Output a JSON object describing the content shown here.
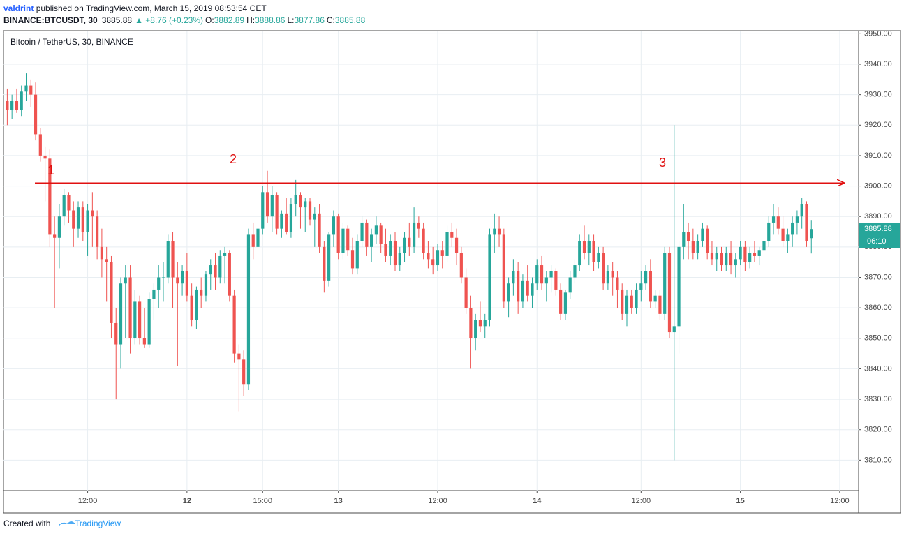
{
  "header": {
    "author": "valdrint",
    "published": "published on TradingView.com, March 15, 2019 08:53:54 CET"
  },
  "chart_data": {
    "type": "candlestick",
    "symbol": "BINANCE:BTCUSDT, 30",
    "change": "▲ +8.76 (+0.23%)",
    "ohlc_labels": [
      "O:",
      "H:",
      "L:",
      "C:"
    ],
    "legend": "Bitcoin / TetherUS, 30, BINANCE",
    "countdown": "06:10",
    "up_color": "#26a69a",
    "down_color": "#ef5350",
    "grid": true,
    "annotation": {
      "level": 3901,
      "color": "#e01010",
      "labels": [
        "1",
        "2",
        "3"
      ]
    },
    "xlim": [
      -0.5,
      180
    ],
    "xticks": [
      {
        "value": 17,
        "label": "12:00"
      },
      {
        "value": 38,
        "label": "12"
      },
      {
        "value": 54,
        "label": "15:00"
      },
      {
        "value": 70,
        "label": "13"
      },
      {
        "value": 91,
        "label": "12:00"
      },
      {
        "value": 112,
        "label": "14"
      },
      {
        "value": 134,
        "label": "12:00"
      },
      {
        "value": 155,
        "label": "15"
      },
      {
        "value": 176,
        "label": "12:00"
      }
    ],
    "ylim": [
      3800,
      3951
    ],
    "yticks": [
      {
        "value": 3810,
        "label": "3810.00"
      },
      {
        "value": 3820,
        "label": "3820.00"
      },
      {
        "value": 3830,
        "label": "3830.00"
      },
      {
        "value": 3840,
        "label": "3840.00"
      },
      {
        "value": 3850,
        "label": "3850.00"
      },
      {
        "value": 3860,
        "label": "3860.00"
      },
      {
        "value": 3870,
        "label": "3870.00"
      },
      {
        "value": 3880,
        "label": "3880.00"
      },
      {
        "value": 3890,
        "label": "3890.00"
      },
      {
        "value": 3900,
        "label": "3900.00"
      },
      {
        "value": 3910,
        "label": "3910.00"
      },
      {
        "value": 3920,
        "label": "3920.00"
      },
      {
        "value": 3930,
        "label": "3930.00"
      },
      {
        "value": 3940,
        "label": "3940.00"
      },
      {
        "value": 3950,
        "label": "3950.00"
      }
    ],
    "ohlc": [
      [
        3928,
        3932,
        3920,
        3925
      ],
      [
        3925,
        3930,
        3922,
        3928
      ],
      [
        3928,
        3932,
        3924,
        3925
      ],
      [
        3925,
        3933,
        3923,
        3931
      ],
      [
        3931,
        3937,
        3928,
        3933
      ],
      [
        3933,
        3935,
        3926,
        3930
      ],
      [
        3930,
        3934,
        3915,
        3917
      ],
      [
        3917,
        3919,
        3908,
        3910
      ],
      [
        3910,
        3913,
        3895,
        3909
      ],
      [
        3909,
        3912,
        3880,
        3884
      ],
      [
        3884,
        3890,
        3860,
        3883
      ],
      [
        3883,
        3894,
        3873,
        3890
      ],
      [
        3890,
        3899,
        3887,
        3897
      ],
      [
        3897,
        3898,
        3888,
        3892
      ],
      [
        3892,
        3895,
        3880,
        3886
      ],
      [
        3886,
        3895,
        3883,
        3893
      ],
      [
        3893,
        3895,
        3882,
        3885
      ],
      [
        3885,
        3894,
        3877,
        3892
      ],
      [
        3892,
        3898,
        3880,
        3890
      ],
      [
        3890,
        3892,
        3876,
        3880
      ],
      [
        3880,
        3886,
        3870,
        3876
      ],
      [
        3876,
        3880,
        3862,
        3875
      ],
      [
        3875,
        3877,
        3850,
        3855
      ],
      [
        3855,
        3860,
        3830,
        3848
      ],
      [
        3848,
        3870,
        3840,
        3868
      ],
      [
        3868,
        3874,
        3850,
        3870
      ],
      [
        3870,
        3874,
        3845,
        3850
      ],
      [
        3850,
        3866,
        3848,
        3862
      ],
      [
        3862,
        3864,
        3848,
        3850
      ],
      [
        3850,
        3860,
        3847,
        3848
      ],
      [
        3848,
        3865,
        3847,
        3863
      ],
      [
        3863,
        3868,
        3856,
        3866
      ],
      [
        3866,
        3874,
        3860,
        3870
      ],
      [
        3870,
        3875,
        3862,
        3870
      ],
      [
        3870,
        3884,
        3868,
        3882
      ],
      [
        3882,
        3885,
        3860,
        3870
      ],
      [
        3870,
        3875,
        3841,
        3868
      ],
      [
        3868,
        3874,
        3864,
        3872
      ],
      [
        3872,
        3878,
        3862,
        3864
      ],
      [
        3864,
        3868,
        3854,
        3856
      ],
      [
        3856,
        3867,
        3853,
        3866
      ],
      [
        3866,
        3870,
        3860,
        3864
      ],
      [
        3864,
        3872,
        3862,
        3871
      ],
      [
        3871,
        3876,
        3866,
        3874
      ],
      [
        3874,
        3878,
        3866,
        3870
      ],
      [
        3870,
        3879,
        3868,
        3877
      ],
      [
        3877,
        3880,
        3868,
        3878
      ],
      [
        3878,
        3879,
        3862,
        3864
      ],
      [
        3864,
        3866,
        3842,
        3845
      ],
      [
        3845,
        3848,
        3826,
        3843
      ],
      [
        3843,
        3846,
        3831,
        3835
      ],
      [
        3835,
        3886,
        3833,
        3884
      ],
      [
        3884,
        3888,
        3876,
        3880
      ],
      [
        3880,
        3890,
        3878,
        3886
      ],
      [
        3886,
        3900,
        3884,
        3898
      ],
      [
        3898,
        3905,
        3888,
        3890
      ],
      [
        3890,
        3900,
        3885,
        3897
      ],
      [
        3897,
        3898,
        3884,
        3886
      ],
      [
        3886,
        3892,
        3883,
        3891
      ],
      [
        3891,
        3896,
        3884,
        3885
      ],
      [
        3885,
        3896,
        3883,
        3894
      ],
      [
        3894,
        3902,
        3890,
        3897
      ],
      [
        3897,
        3898,
        3886,
        3893
      ],
      [
        3893,
        3896,
        3885,
        3895
      ],
      [
        3895,
        3896,
        3887,
        3889
      ],
      [
        3889,
        3893,
        3880,
        3891
      ],
      [
        3891,
        3894,
        3878,
        3880
      ],
      [
        3880,
        3882,
        3865,
        3869
      ],
      [
        3869,
        3885,
        3867,
        3884
      ],
      [
        3884,
        3892,
        3880,
        3890
      ],
      [
        3890,
        3891,
        3876,
        3878
      ],
      [
        3878,
        3888,
        3876,
        3886
      ],
      [
        3886,
        3887,
        3877,
        3879
      ],
      [
        3879,
        3883,
        3871,
        3873
      ],
      [
        3873,
        3884,
        3871,
        3882
      ],
      [
        3882,
        3890,
        3880,
        3888
      ],
      [
        3888,
        3889,
        3877,
        3880
      ],
      [
        3880,
        3886,
        3875,
        3884
      ],
      [
        3884,
        3890,
        3881,
        3887
      ],
      [
        3887,
        3888,
        3878,
        3881
      ],
      [
        3881,
        3886,
        3875,
        3877
      ],
      [
        3877,
        3884,
        3874,
        3882
      ],
      [
        3882,
        3885,
        3872,
        3874
      ],
      [
        3874,
        3880,
        3872,
        3878
      ],
      [
        3878,
        3885,
        3875,
        3883
      ],
      [
        3883,
        3888,
        3877,
        3880
      ],
      [
        3880,
        3893,
        3878,
        3888
      ],
      [
        3888,
        3890,
        3883,
        3886
      ],
      [
        3886,
        3888,
        3876,
        3878
      ],
      [
        3878,
        3882,
        3873,
        3876
      ],
      [
        3876,
        3880,
        3871,
        3874
      ],
      [
        3874,
        3881,
        3872,
        3879
      ],
      [
        3879,
        3882,
        3873,
        3877
      ],
      [
        3877,
        3887,
        3875,
        3885
      ],
      [
        3885,
        3888,
        3880,
        3883
      ],
      [
        3883,
        3886,
        3874,
        3878
      ],
      [
        3878,
        3880,
        3868,
        3870
      ],
      [
        3870,
        3873,
        3858,
        3860
      ],
      [
        3860,
        3864,
        3840,
        3850
      ],
      [
        3850,
        3858,
        3846,
        3856
      ],
      [
        3856,
        3862,
        3852,
        3854
      ],
      [
        3854,
        3858,
        3850,
        3856
      ],
      [
        3856,
        3886,
        3854,
        3884
      ],
      [
        3884,
        3891,
        3878,
        3886
      ],
      [
        3886,
        3890,
        3880,
        3884
      ],
      [
        3884,
        3886,
        3860,
        3862
      ],
      [
        3862,
        3870,
        3857,
        3868
      ],
      [
        3868,
        3876,
        3864,
        3872
      ],
      [
        3872,
        3875,
        3858,
        3862
      ],
      [
        3862,
        3871,
        3860,
        3869
      ],
      [
        3869,
        3874,
        3862,
        3864
      ],
      [
        3864,
        3870,
        3860,
        3868
      ],
      [
        3868,
        3876,
        3866,
        3874
      ],
      [
        3874,
        3877,
        3866,
        3868
      ],
      [
        3868,
        3872,
        3862,
        3870
      ],
      [
        3870,
        3874,
        3865,
        3872
      ],
      [
        3872,
        3873,
        3864,
        3866
      ],
      [
        3866,
        3868,
        3856,
        3858
      ],
      [
        3858,
        3866,
        3856,
        3865
      ],
      [
        3865,
        3872,
        3863,
        3870
      ],
      [
        3870,
        3876,
        3868,
        3874
      ],
      [
        3874,
        3884,
        3872,
        3882
      ],
      [
        3882,
        3887,
        3876,
        3878
      ],
      [
        3878,
        3884,
        3874,
        3882
      ],
      [
        3882,
        3884,
        3872,
        3875
      ],
      [
        3875,
        3880,
        3873,
        3878
      ],
      [
        3878,
        3880,
        3866,
        3868
      ],
      [
        3868,
        3874,
        3866,
        3872
      ],
      [
        3872,
        3875,
        3864,
        3870
      ],
      [
        3870,
        3872,
        3860,
        3866
      ],
      [
        3866,
        3868,
        3856,
        3858
      ],
      [
        3858,
        3866,
        3854,
        3864
      ],
      [
        3864,
        3866,
        3858,
        3860
      ],
      [
        3860,
        3868,
        3858,
        3866
      ],
      [
        3866,
        3872,
        3862,
        3868
      ],
      [
        3868,
        3874,
        3866,
        3872
      ],
      [
        3872,
        3876,
        3860,
        3862
      ],
      [
        3862,
        3866,
        3860,
        3864
      ],
      [
        3864,
        3866,
        3856,
        3858
      ],
      [
        3858,
        3880,
        3856,
        3878
      ],
      [
        3878,
        3880,
        3850,
        3852
      ],
      [
        3852,
        3920,
        3810,
        3854
      ],
      [
        3854,
        3882,
        3845,
        3880
      ],
      [
        3880,
        3894,
        3876,
        3885
      ],
      [
        3885,
        3888,
        3876,
        3882
      ],
      [
        3882,
        3886,
        3876,
        3878
      ],
      [
        3878,
        3884,
        3876,
        3882
      ],
      [
        3882,
        3888,
        3880,
        3886
      ],
      [
        3886,
        3887,
        3876,
        3878
      ],
      [
        3878,
        3882,
        3874,
        3876
      ],
      [
        3876,
        3880,
        3872,
        3878
      ],
      [
        3878,
        3880,
        3872,
        3874
      ],
      [
        3874,
        3880,
        3872,
        3878
      ],
      [
        3878,
        3882,
        3871,
        3874
      ],
      [
        3874,
        3878,
        3870,
        3876
      ],
      [
        3876,
        3882,
        3874,
        3880
      ],
      [
        3880,
        3882,
        3872,
        3875
      ],
      [
        3875,
        3880,
        3873,
        3878
      ],
      [
        3878,
        3882,
        3875,
        3877
      ],
      [
        3877,
        3880,
        3874,
        3879
      ],
      [
        3879,
        3884,
        3876,
        3882
      ],
      [
        3882,
        3890,
        3880,
        3888
      ],
      [
        3888,
        3894,
        3884,
        3890
      ],
      [
        3890,
        3893,
        3884,
        3886
      ],
      [
        3886,
        3890,
        3880,
        3882
      ],
      [
        3882,
        3886,
        3878,
        3884
      ],
      [
        3884,
        3890,
        3880,
        3888
      ],
      [
        3888,
        3892,
        3884,
        3890
      ],
      [
        3890,
        3896,
        3886,
        3894
      ],
      [
        3894,
        3895,
        3880,
        3882
      ],
      [
        3882.89,
        3888.86,
        3877.86,
        3885.88
      ]
    ]
  },
  "footer": {
    "created": "Created with",
    "brand": "TradingView"
  }
}
